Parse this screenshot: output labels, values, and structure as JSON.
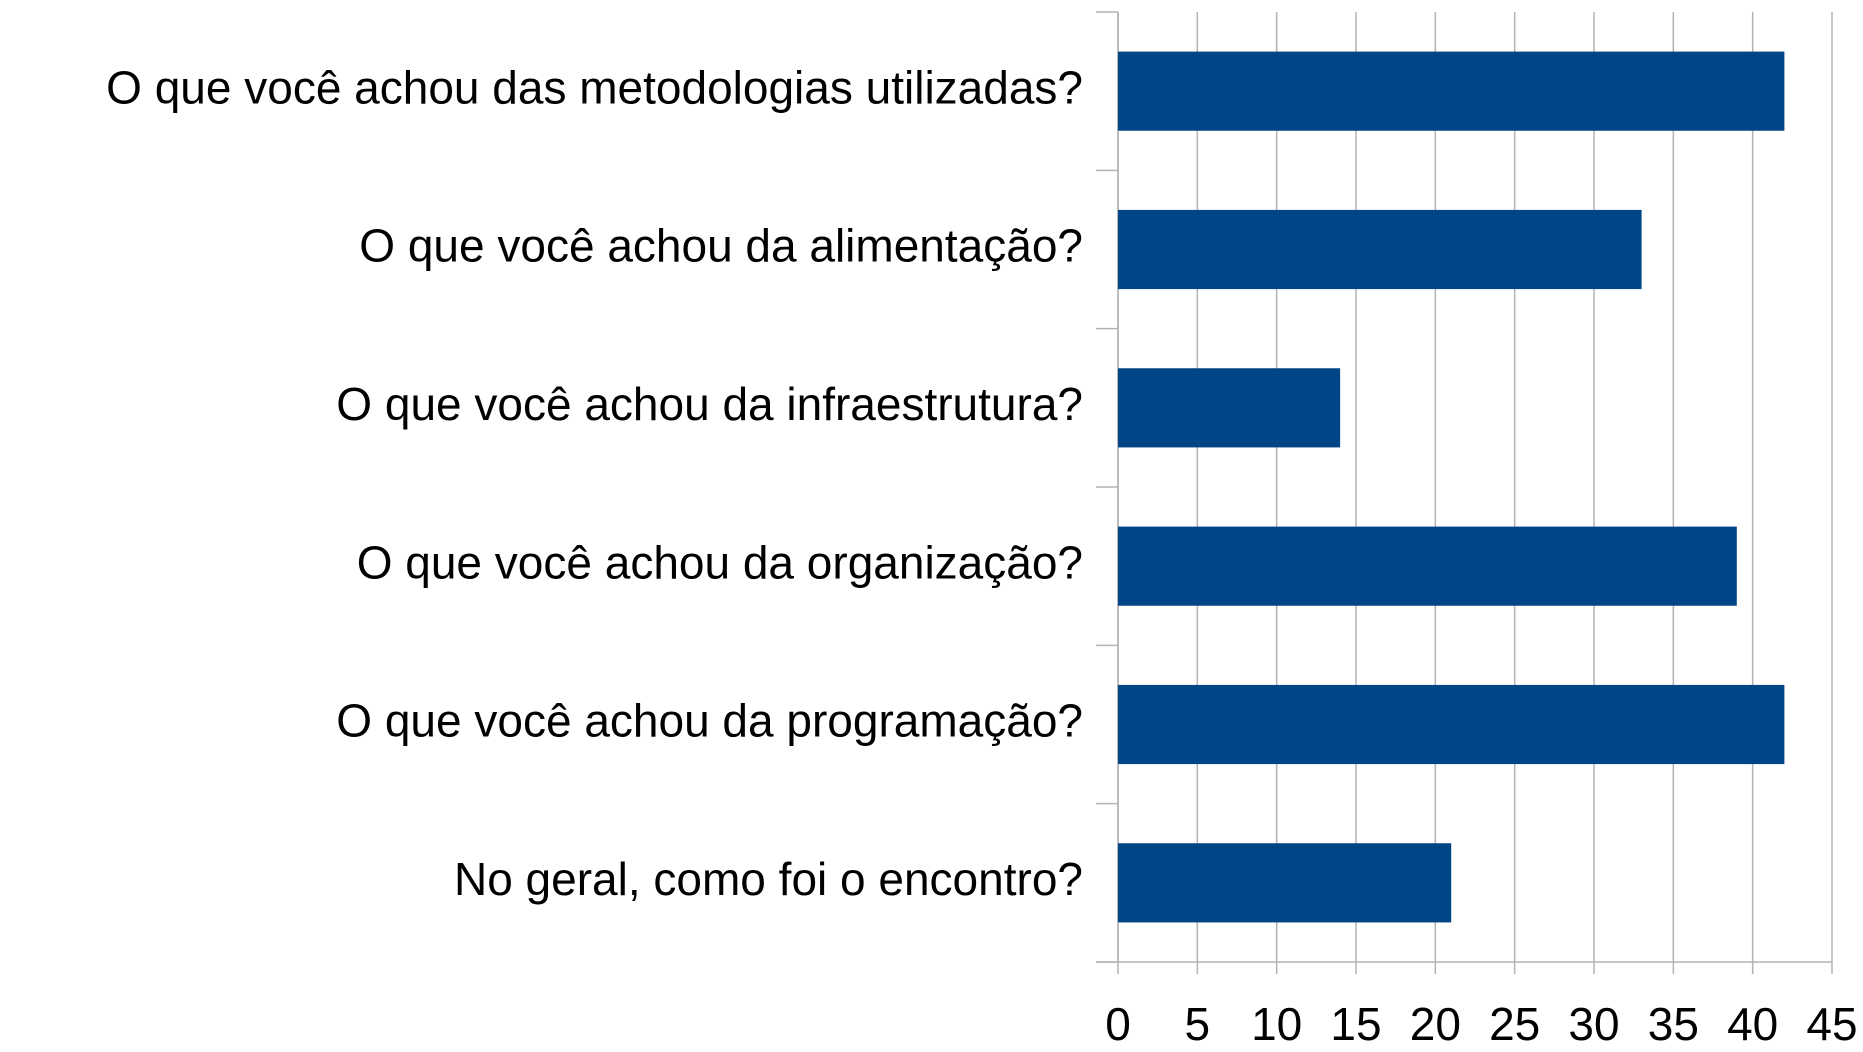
{
  "chart_data": {
    "type": "bar",
    "orientation": "horizontal",
    "categories": [
      "O que você achou das metodologias utilizadas?",
      "O que você achou da alimentação?",
      "O que você achou da infraestrutura?",
      "O que você achou da organização?",
      "O que você achou da programação?",
      "No geral, como foi o encontro?"
    ],
    "values": [
      42,
      33,
      14,
      39,
      42,
      21
    ],
    "color": "#004586",
    "xlim": [
      0,
      45
    ],
    "xticks": [
      0,
      5,
      10,
      15,
      20,
      25,
      30,
      35,
      40,
      45
    ],
    "grid": true
  }
}
